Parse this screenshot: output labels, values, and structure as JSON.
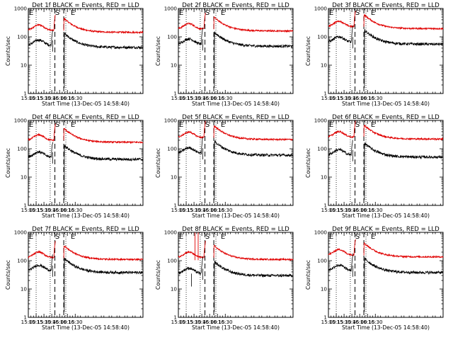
{
  "chart_data": {
    "type": "line",
    "layout": "3x3 grid of panels",
    "yscale": "log",
    "ylabel": "Counts/sec",
    "xlabel": "Start Time (13-Dec-05 14:58:40)",
    "ylim": [
      1,
      1000
    ],
    "y_ticks": [
      "1",
      "10",
      "100",
      "1000"
    ],
    "xlim": [
      "15:00",
      "18:40"
    ],
    "x_ticks": [
      "15:00",
      "15:15",
      "15:30",
      "15:45",
      "16:00",
      "16:15",
      "16:30"
    ],
    "series_colors": {
      "events": "#000000",
      "lld": "#e00000"
    },
    "markers": [
      {
        "label": "E",
        "time": "15:00"
      },
      {
        "label": "S",
        "time": "15:50"
      },
      {
        "label": "E",
        "time": "16:20"
      }
    ],
    "vlines_dotted": [
      "15:15",
      "15:42",
      "16:12"
    ],
    "vlines_dashed": [
      "15:51",
      "16:08"
    ],
    "panels": [
      {
        "title": "Det 1f BLACK = Events, RED = LLD",
        "black_base": 50,
        "red_base": 170,
        "black_gap": [
          "15:47",
          "16:09"
        ],
        "red_gap": [
          "15:52",
          "16:08"
        ]
      },
      {
        "title": "Det 2f BLACK = Events, RED = LLD",
        "black_base": 55,
        "red_base": 190,
        "black_gap": [
          "15:47",
          "16:09"
        ],
        "red_gap": [
          "15:52",
          "16:08"
        ]
      },
      {
        "title": "Det 3f BLACK = Events, RED = LLD",
        "black_base": 65,
        "red_base": 230,
        "black_gap": [
          "15:47",
          "16:09"
        ],
        "red_gap": [
          "15:52",
          "16:08"
        ]
      },
      {
        "title": "Det 4f BLACK = Events, RED = LLD",
        "black_base": 50,
        "red_base": 200,
        "black_gap": [
          "15:47",
          "16:09"
        ],
        "red_gap": [
          "15:52",
          "16:08"
        ]
      },
      {
        "title": "Det 5f BLACK = Events, RED = LLD",
        "black_base": 70,
        "red_base": 250,
        "black_gap": [
          "15:47",
          "16:09"
        ],
        "red_gap": [
          "15:52",
          "16:08"
        ]
      },
      {
        "title": "Det 6f BLACK = Events, RED = LLD",
        "black_base": 60,
        "red_base": 260,
        "black_gap": [
          "15:47",
          "16:09"
        ],
        "red_gap": [
          "15:52",
          "16:08"
        ]
      },
      {
        "title": "Det 7f BLACK = Events, RED = LLD",
        "black_base": 45,
        "red_base": 130,
        "black_gap": [
          "15:47",
          "16:09"
        ],
        "red_gap": [
          "15:52",
          "16:08"
        ]
      },
      {
        "title": "Det 8f BLACK = Events, RED = LLD",
        "black_base": 35,
        "red_base": 130,
        "black_gap": [
          "15:47",
          "16:09"
        ],
        "red_gap": [
          "15:52",
          "16:08"
        ],
        "spikes": [
          "15:32",
          "15:38"
        ]
      },
      {
        "title": "Det 9f BLACK = Events, RED = LLD",
        "black_base": 45,
        "red_base": 160,
        "black_gap": [
          "15:47",
          "16:09"
        ],
        "red_gap": [
          "15:52",
          "16:08"
        ]
      }
    ]
  }
}
